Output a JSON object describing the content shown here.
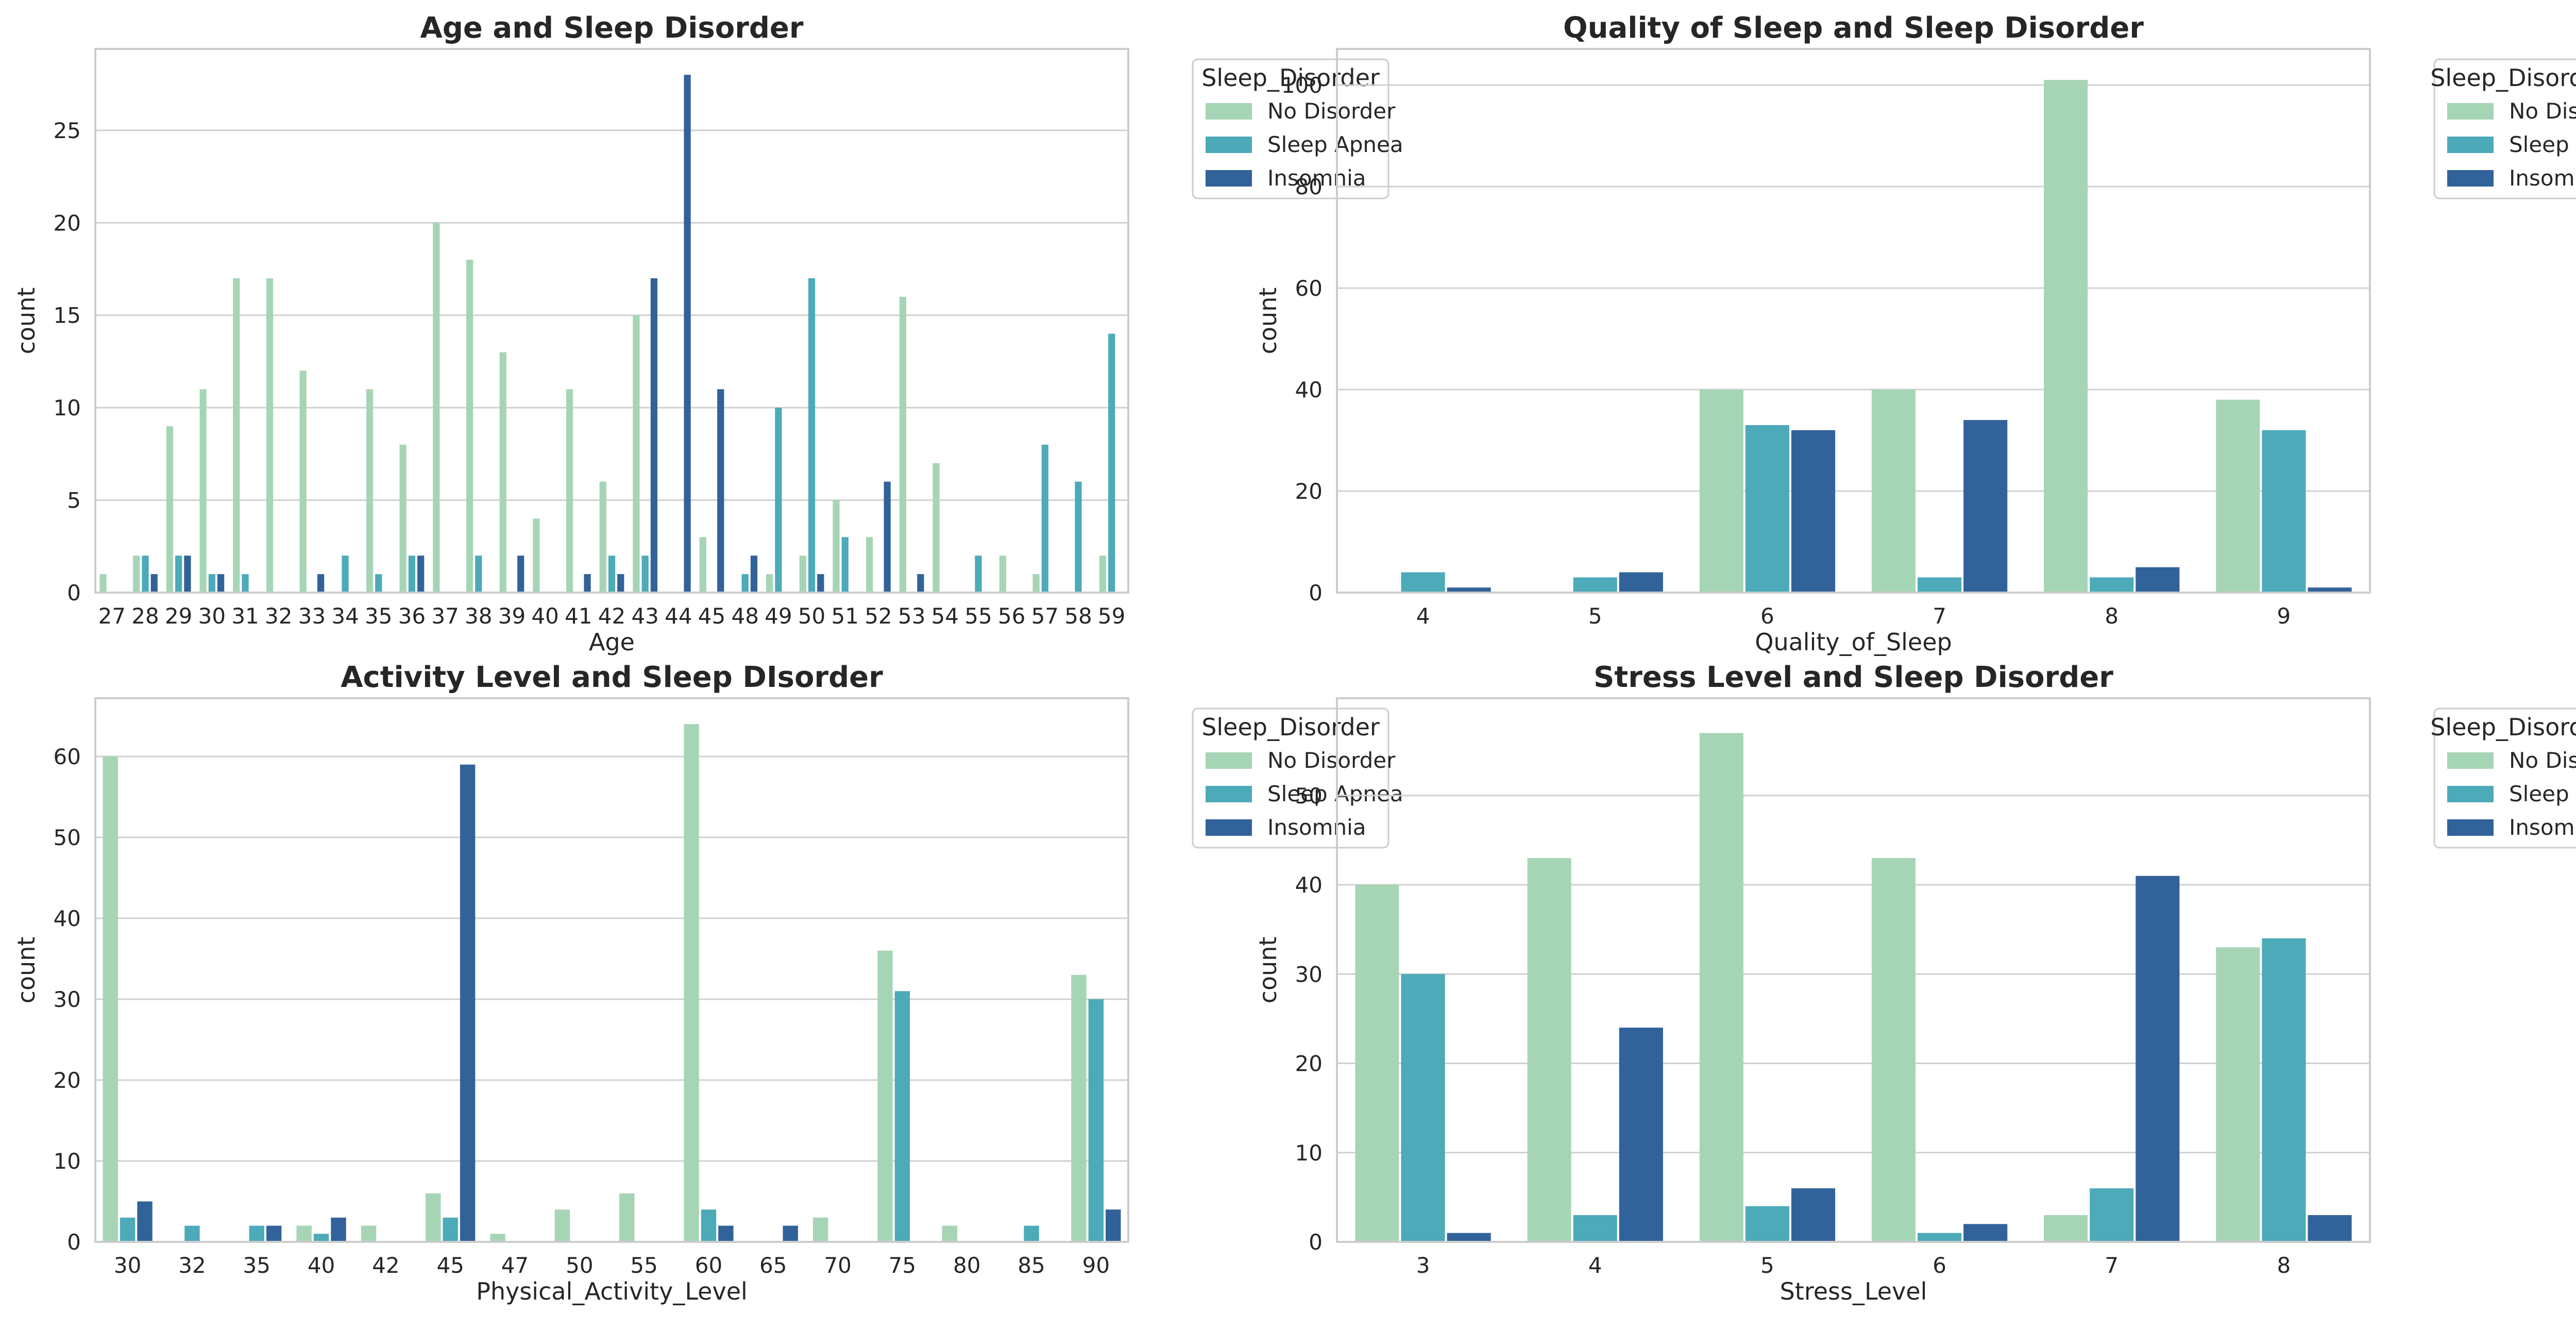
{
  "chart_data": [
    {
      "type": "bar",
      "title": "Age and Sleep Disorder",
      "xlabel": "Age",
      "ylabel": "count",
      "ylim": [
        0,
        29.4
      ],
      "yticks": [
        0,
        5,
        10,
        15,
        20,
        25
      ],
      "grid": "horizontal",
      "legend": {
        "title": "Sleep_Disorder",
        "placement": "upper-right, outside"
      },
      "categories": [
        "27",
        "28",
        "29",
        "30",
        "31",
        "32",
        "33",
        "34",
        "35",
        "36",
        "37",
        "38",
        "39",
        "40",
        "41",
        "42",
        "43",
        "44",
        "45",
        "48",
        "49",
        "50",
        "51",
        "52",
        "53",
        "54",
        "55",
        "56",
        "57",
        "58",
        "59"
      ],
      "series": [
        {
          "name": "No Disorder",
          "values": [
            1,
            2,
            9,
            11,
            17,
            17,
            12,
            0,
            11,
            8,
            20,
            18,
            13,
            4,
            11,
            6,
            15,
            0,
            3,
            0,
            1,
            2,
            5,
            3,
            16,
            7,
            0,
            2,
            1,
            0,
            2
          ]
        },
        {
          "name": "Sleep Apnea",
          "values": [
            0,
            2,
            2,
            1,
            1,
            0,
            0,
            2,
            1,
            2,
            0,
            2,
            0,
            0,
            0,
            2,
            2,
            0,
            0,
            1,
            10,
            17,
            3,
            0,
            0,
            0,
            2,
            0,
            8,
            6,
            14
          ]
        },
        {
          "name": "Insomnia",
          "values": [
            0,
            1,
            2,
            1,
            0,
            0,
            1,
            0,
            0,
            2,
            0,
            0,
            2,
            0,
            1,
            1,
            17,
            28,
            11,
            2,
            0,
            1,
            0,
            6,
            1,
            0,
            0,
            0,
            0,
            0,
            0
          ]
        }
      ]
    },
    {
      "type": "bar",
      "title": "Quality of Sleep and Sleep Disorder",
      "xlabel": "Quality_of_Sleep",
      "ylabel": "count",
      "ylim": [
        0,
        107.1
      ],
      "yticks": [
        0,
        20,
        40,
        60,
        80,
        100
      ],
      "grid": "horizontal",
      "legend": {
        "title": "Sleep_Disorder",
        "placement": "upper-right, outside"
      },
      "categories": [
        "4",
        "5",
        "6",
        "7",
        "8",
        "9"
      ],
      "series": [
        {
          "name": "No Disorder",
          "values": [
            0,
            0,
            40,
            40,
            101,
            38
          ]
        },
        {
          "name": "Sleep Apnea",
          "values": [
            4,
            3,
            33,
            3,
            3,
            32
          ]
        },
        {
          "name": "Insomnia",
          "values": [
            1,
            4,
            32,
            34,
            5,
            1
          ]
        }
      ]
    },
    {
      "type": "bar",
      "title": "Activity Level and Sleep DIsorder",
      "xlabel": "Physical_Activity_Level",
      "ylabel": "count",
      "ylim": [
        0,
        67.2
      ],
      "yticks": [
        0,
        10,
        20,
        30,
        40,
        50,
        60
      ],
      "grid": "horizontal",
      "legend": {
        "title": "Sleep_Disorder",
        "placement": "upper-right, outside"
      },
      "categories": [
        "30",
        "32",
        "35",
        "40",
        "42",
        "45",
        "47",
        "50",
        "55",
        "60",
        "65",
        "70",
        "75",
        "80",
        "85",
        "90"
      ],
      "series": [
        {
          "name": "No Disorder",
          "values": [
            60,
            0,
            0,
            2,
            2,
            6,
            1,
            4,
            6,
            64,
            0,
            3,
            36,
            2,
            0,
            33
          ]
        },
        {
          "name": "Sleep Apnea",
          "values": [
            3,
            2,
            2,
            1,
            0,
            3,
            0,
            0,
            0,
            4,
            0,
            0,
            31,
            0,
            2,
            30
          ]
        },
        {
          "name": "Insomnia",
          "values": [
            5,
            0,
            2,
            3,
            0,
            59,
            0,
            0,
            0,
            2,
            2,
            0,
            0,
            0,
            0,
            4
          ]
        }
      ]
    },
    {
      "type": "bar",
      "title": "Stress Level and Sleep Disorder",
      "xlabel": "Stress_Level",
      "ylabel": "count",
      "ylim": [
        0,
        60.9
      ],
      "yticks": [
        0,
        10,
        20,
        30,
        40,
        50
      ],
      "grid": "horizontal",
      "legend": {
        "title": "Sleep_Disorder",
        "placement": "upper-right, outside"
      },
      "categories": [
        "3",
        "4",
        "5",
        "6",
        "7",
        "8"
      ],
      "series": [
        {
          "name": "No Disorder",
          "values": [
            40,
            43,
            57,
            43,
            3,
            33
          ]
        },
        {
          "name": "Sleep Apnea",
          "values": [
            30,
            3,
            4,
            1,
            6,
            34
          ]
        },
        {
          "name": "Insomnia",
          "values": [
            1,
            24,
            6,
            2,
            41,
            3
          ]
        }
      ]
    }
  ],
  "colors": {
    "No Disorder": "#a6d5b5",
    "Sleep Apnea": "#4daab9",
    "Insomnia": "#32629a",
    "grid": "#d0d0d0",
    "spine": "#cccccc",
    "text": "#262626"
  }
}
